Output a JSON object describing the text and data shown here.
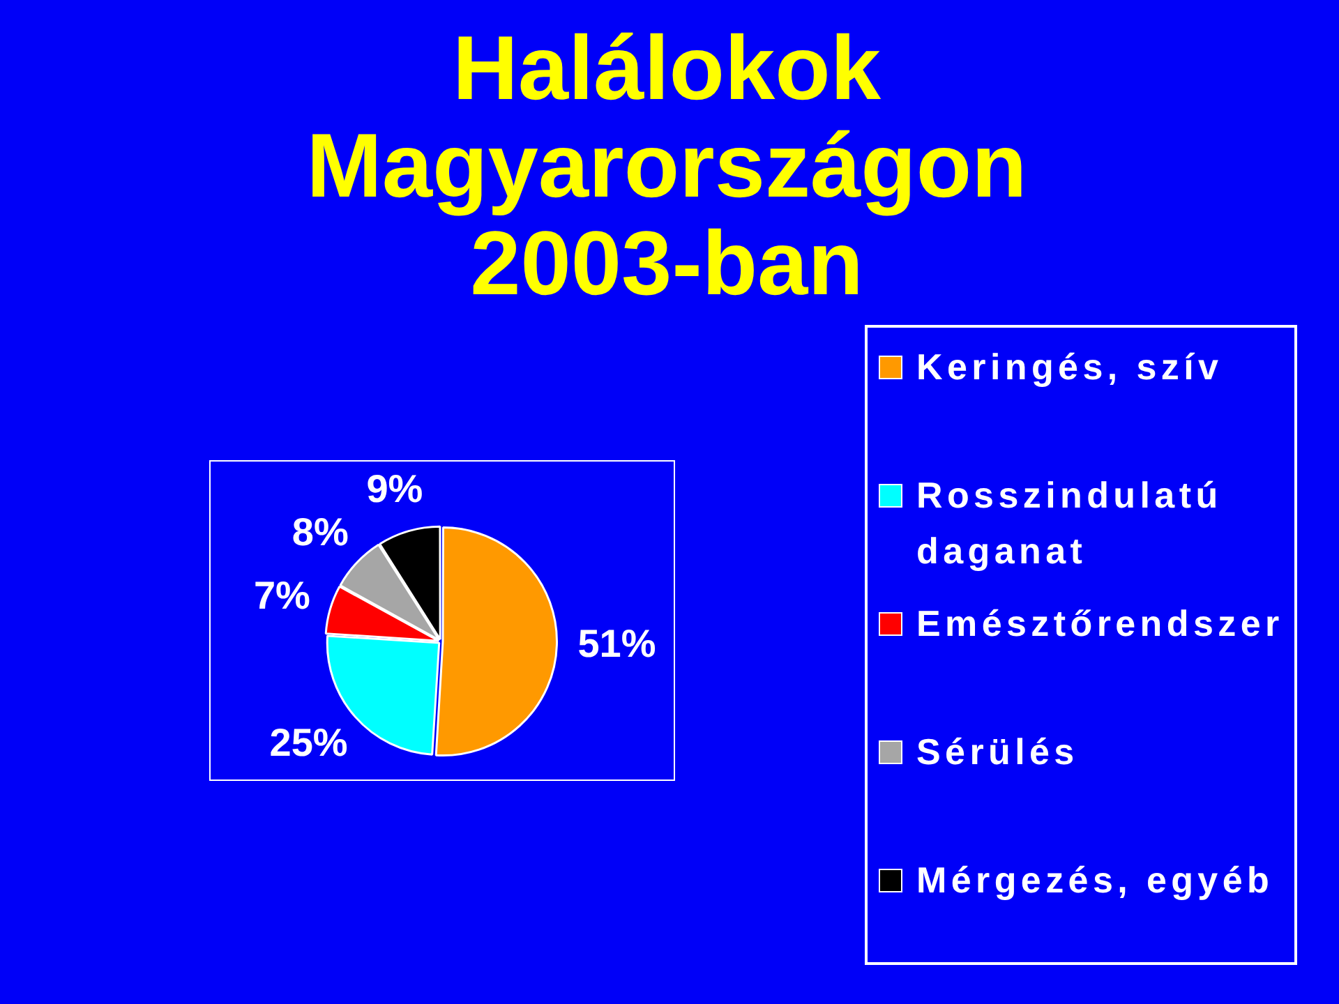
{
  "chart_data": {
    "type": "pie",
    "title": "Halálokok Magyarországon 2003-ban",
    "categories": [
      "Keringés, szív",
      "Rosszindulatú daganat",
      "Emésztőrendszer",
      "Sérülés",
      "Mérgezés, egyéb"
    ],
    "values": [
      51,
      25,
      7,
      8,
      9
    ],
    "colors": [
      "#ff9900",
      "#00ffff",
      "#ff0000",
      "#a6a6a6",
      "#000000"
    ],
    "value_labels": [
      "51%",
      "25%",
      "7%",
      "8%",
      "9%"
    ],
    "legend": "right"
  }
}
